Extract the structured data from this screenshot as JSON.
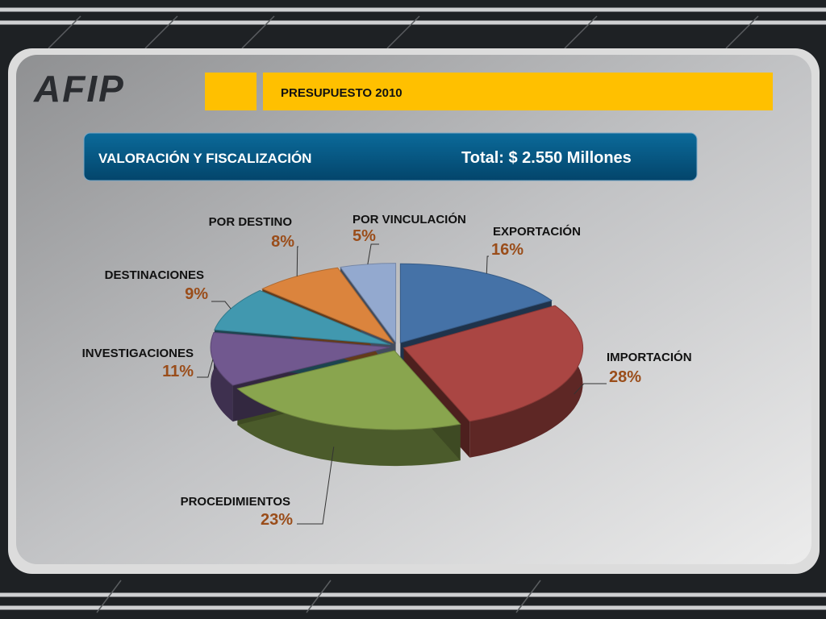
{
  "logo": "AFIP",
  "header": {
    "title": "PRESUPUESTO 2010"
  },
  "banner": {
    "left": "VALORACIÓN Y FISCALIZACIÓN",
    "right": "Total: $ 2.550 Millones"
  },
  "chart_data": {
    "type": "pie",
    "categories": [
      "EXPORTACIÓN",
      "IMPORTACIÓN",
      "PROCEDIMIENTOS",
      "INVESTIGACIONES",
      "DESTINACIONES",
      "POR DESTINO",
      "POR VINCULACIÓN"
    ],
    "values": [
      16,
      28,
      23,
      11,
      9,
      8,
      5
    ],
    "value_labels": [
      "16%",
      "28%",
      "23%",
      "11%",
      "9%",
      "8%",
      "5%"
    ],
    "colors": [
      "#4572a7",
      "#aa4643",
      "#89a54e",
      "#71588f",
      "#4198af",
      "#db843d",
      "#93a9cf"
    ]
  }
}
